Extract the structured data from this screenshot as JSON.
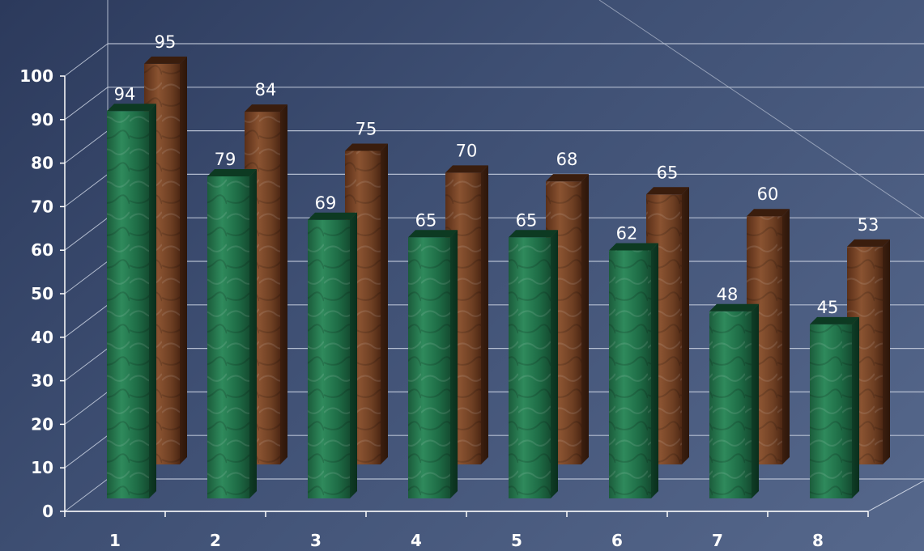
{
  "chart_data": {
    "type": "bar",
    "title": "",
    "xlabel": "",
    "ylabel": "",
    "categories": [
      "1",
      "2",
      "3",
      "4",
      "5",
      "6",
      "7",
      "8"
    ],
    "series": [
      {
        "values": [
          94,
          79,
          69,
          65,
          65,
          62,
          48,
          45
        ]
      },
      {
        "values": [
          95,
          84,
          75,
          70,
          68,
          65,
          60,
          53
        ]
      }
    ],
    "ylim": [
      0,
      100
    ],
    "yticks": [
      "0",
      "10",
      "20",
      "30",
      "40",
      "50",
      "60",
      "70",
      "80",
      "90",
      "100"
    ],
    "grid": true,
    "legend": "none",
    "three_d": true,
    "colors": {
      "series_front": "#1e6b45",
      "series_back": "#6b3b22",
      "grid": "#c8d0e0",
      "background": "#3e4f73"
    }
  }
}
